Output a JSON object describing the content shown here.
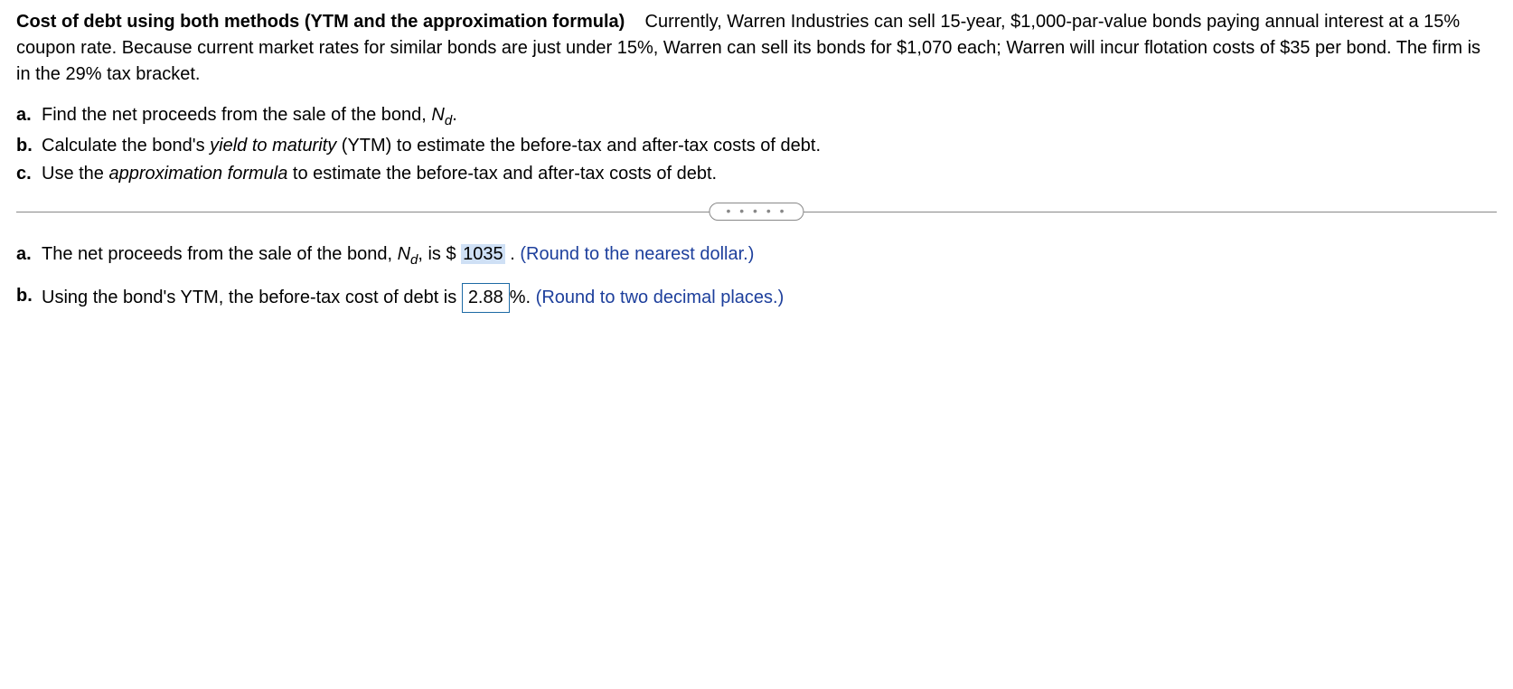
{
  "problem": {
    "title": "Cost of debt using both methods (YTM and the approximation formula)",
    "body": "Currently, Warren Industries can sell 15-year, $1,000-par-value bonds paying annual interest at a 15% coupon rate.  Because current market rates for similar bonds are just under 15%, Warren can sell its bonds for $1,070 each; Warren will incur flotation costs of $35 per bond.  The firm is in the 29% tax bracket."
  },
  "questions": {
    "a": {
      "label": "a.",
      "pre": "Find the net proceeds from the sale of the bond, ",
      "var": "N",
      "varSub": "d",
      "post": "."
    },
    "b": {
      "label": "b.",
      "pre": "Calculate the bond's ",
      "em": "yield to maturity",
      "post": " (YTM) to estimate the before-tax and after-tax costs of debt."
    },
    "c": {
      "label": "c.",
      "pre": "Use the ",
      "em": "approximation formula",
      "post": " to estimate the before-tax and after-tax costs of debt."
    }
  },
  "divider": {
    "dots": "• • • • •"
  },
  "answers": {
    "a": {
      "label": "a.",
      "pre": "The net proceeds from the sale of the bond, ",
      "var": "N",
      "varSub": "d",
      "mid": ", is $ ",
      "value": "1035",
      "post": " .  ",
      "hint": "(Round to the nearest dollar.)"
    },
    "b": {
      "label": "b.",
      "pre": "Using the bond's YTM, the before-tax cost of debt is ",
      "value": "2.88",
      "unit": "%.  ",
      "hint": "(Round to two decimal places.)"
    }
  },
  "style": {
    "textColor": "#000000",
    "hintColor": "#1d3f9c",
    "highlightBg": "#cfe0f5",
    "boxBorder": "#1d6aa5",
    "dividerColor": "#888888",
    "fontSize": 20
  }
}
